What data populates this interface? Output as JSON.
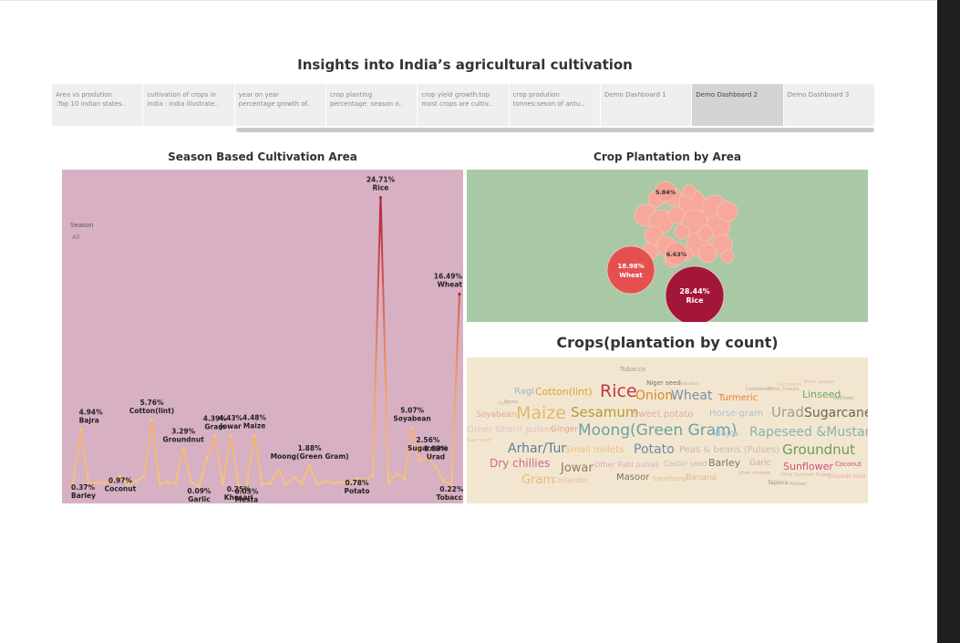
{
  "dashboard": {
    "title": "Insights into India’s agricultural cultivation"
  },
  "tabs": [
    {
      "line1": "Area vs prodution",
      "line2": ":Top 10 indian states.."
    },
    {
      "line1": "cuitivation of crops in",
      "line2": "india : india illustrate.."
    },
    {
      "line1": "year on year",
      "line2": "percentage growth of.."
    },
    {
      "line1": "crop planting",
      "line2": "percentage: season o.."
    },
    {
      "line1": "crop yield growth:top",
      "line2": "most crops are cultiv.."
    },
    {
      "line1": "crop prodution",
      "line2": "tonnes:seson of antu.."
    },
    {
      "line1": "Demo Dashboard 1",
      "line2": ""
    },
    {
      "line1": "Demo Dashboard 2",
      "line2": ""
    },
    {
      "line1": "Demo Dashboard 3",
      "line2": ""
    }
  ],
  "active_tab": 7,
  "season_panel": {
    "title": "Season Based Cultivation Area",
    "filter_label": "Season",
    "filter_value": "All"
  },
  "bubble_panel": {
    "title": "Crop Plantation by Area"
  },
  "cloud_panel": {
    "title": "Crops(plantation by count)"
  },
  "colors": {
    "season_bg": "#d8b0c4",
    "bubble_bg": "#a9c9a6",
    "cloud_bg": "#f3e6d0",
    "line_low": "#f5c57a",
    "line_high": "#b22137"
  },
  "chart_data": [
    {
      "type": "line",
      "title": "Season Based Cultivation Area",
      "ylim": [
        0,
        26
      ],
      "points": [
        0.37,
        4.94,
        0.3,
        0.5,
        0.4,
        0.6,
        0.97,
        0.3,
        0.6,
        1.0,
        5.76,
        0.3,
        0.5,
        0.4,
        3.29,
        0.5,
        0.09,
        2.6,
        4.39,
        0.3,
        4.43,
        0.25,
        0.05,
        4.48,
        0.3,
        0.4,
        1.5,
        0.3,
        0.9,
        0.4,
        1.88,
        0.3,
        0.6,
        0.4,
        0.5,
        0.4,
        0.78,
        0.6,
        1.0,
        24.71,
        0.4,
        1.2,
        0.8,
        5.07,
        2.3,
        2.56,
        1.83,
        0.6,
        0.22,
        16.49
      ],
      "labels": [
        {
          "i": 0,
          "text": "0.37%",
          "name": "Barley"
        },
        {
          "i": 1,
          "text": "4.94%",
          "name": "Bajra"
        },
        {
          "i": 6,
          "text": "0.97%",
          "name": "Coconut"
        },
        {
          "i": 10,
          "text": "5.76%",
          "name": "Cotton(lint)"
        },
        {
          "i": 14,
          "text": "3.29%",
          "name": "Groundnut"
        },
        {
          "i": 16,
          "text": "0.09%",
          "name": "Garlic"
        },
        {
          "i": 18,
          "text": "4.39%",
          "name": "Gram"
        },
        {
          "i": 20,
          "text": "4.43%",
          "name": "Jowar"
        },
        {
          "i": 21,
          "text": "0.25%",
          "name": "Khesari"
        },
        {
          "i": 22,
          "text": "0.05%",
          "name": "Mesta"
        },
        {
          "i": 23,
          "text": "4.48%",
          "name": "Maize"
        },
        {
          "i": 30,
          "text": "1.88%",
          "name": "Moong(Green Gram)"
        },
        {
          "i": 36,
          "text": "0.78%",
          "name": "Potato"
        },
        {
          "i": 39,
          "text": "24.71%",
          "name": "Rice"
        },
        {
          "i": 43,
          "text": "5.07%",
          "name": "Soyabean"
        },
        {
          "i": 45,
          "text": "2.56%",
          "name": "Sugarcane"
        },
        {
          "i": 46,
          "text": "1.83%",
          "name": "Urad"
        },
        {
          "i": 48,
          "text": "0.22%",
          "name": "Tobacco"
        },
        {
          "i": 49,
          "text": "16.49%",
          "name": "Wheat"
        }
      ]
    },
    {
      "type": "bubble",
      "title": "Crop Plantation by Area",
      "labeled": [
        {
          "name": "Rice",
          "value": "28.44%",
          "color": "#a4153a"
        },
        {
          "name": "Wheat",
          "value": "18.98%",
          "color": "#e5504f"
        },
        {
          "name": "",
          "value": "6.63%",
          "color": "#f6a193"
        },
        {
          "name": "",
          "value": "5.84%",
          "color": "#f6a193"
        }
      ]
    },
    {
      "type": "wordcloud",
      "title": "Crops(plantation by count)",
      "words": [
        {
          "text": "Tobacco",
          "color": "#9f9a92"
        },
        {
          "text": "Niger seed",
          "color": "#7b6f62"
        },
        {
          "text": "Ragi",
          "color": "#9ab6cf"
        },
        {
          "text": "Cotton(lint)",
          "color": "#e3a02c"
        },
        {
          "text": "Rice",
          "color": "#c33348"
        },
        {
          "text": "Onion",
          "color": "#d5872f"
        },
        {
          "text": "Wheat",
          "color": "#7c8fa4"
        },
        {
          "text": "Turmeric",
          "color": "#e37f30"
        },
        {
          "text": "Linseed",
          "color": "#6aa85a"
        },
        {
          "text": "Soyabean",
          "color": "#e0a88e"
        },
        {
          "text": "Maize",
          "color": "#e0ba68"
        },
        {
          "text": "Sesamum",
          "color": "#b39a32"
        },
        {
          "text": "Sweet potato",
          "color": "#e6a7a7"
        },
        {
          "text": "Horse-gram",
          "color": "#a9c3d8"
        },
        {
          "text": "Urad",
          "color": "#a39b92"
        },
        {
          "text": "Sugarcane",
          "color": "#6d645a"
        },
        {
          "text": "Other Kharif pulses",
          "color": "#e3c3c3"
        },
        {
          "text": "Ginger",
          "color": "#e8a290"
        },
        {
          "text": "Moong(Green Gram)",
          "color": "#6aa3a0"
        },
        {
          "text": "Bajra",
          "color": "#9cc1da"
        },
        {
          "text": "Rapeseed &Mustard",
          "color": "#87b3b0"
        },
        {
          "text": "Arhar/Tur",
          "color": "#5c7d9a"
        },
        {
          "text": "Small millets",
          "color": "#e8c27d"
        },
        {
          "text": "Potato",
          "color": "#6d8aa8"
        },
        {
          "text": "Peas & beans (Pulses)",
          "color": "#cbb8b4"
        },
        {
          "text": "Groundnut",
          "color": "#6c9e56"
        },
        {
          "text": "Dry chillies",
          "color": "#c86b8a"
        },
        {
          "text": "Jowar",
          "color": "#8f7b66"
        },
        {
          "text": "Other Rabi pulses",
          "color": "#d9a9c4"
        },
        {
          "text": "Castor seed",
          "color": "#c9b7a8"
        },
        {
          "text": "Barley",
          "color": "#7d776e"
        },
        {
          "text": "Garic",
          "color": "#c7a8b8"
        },
        {
          "text": "Sunflower",
          "color": "#d04f79"
        },
        {
          "text": "Coconut",
          "color": "#c65074"
        },
        {
          "text": "Gram",
          "color": "#e8bb78"
        },
        {
          "text": "Coriander",
          "color": "#e8bb9b"
        },
        {
          "text": "Masoor",
          "color": "#7a7068"
        },
        {
          "text": "Sannhamp",
          "color": "#e0c07f"
        },
        {
          "text": "Banana",
          "color": "#e7b58f"
        },
        {
          "text": "Tapioca",
          "color": "#9c8e82"
        },
        {
          "text": "Khesari",
          "color": "#b99fb0"
        },
        {
          "text": "Arecanut",
          "color": "#c3a898"
        },
        {
          "text": "Moth",
          "color": "#d2c4a6"
        },
        {
          "text": "Mesta",
          "color": "#b3a8a0"
        },
        {
          "text": "Guar seed",
          "color": "#dcc49c"
        },
        {
          "text": "Safflower",
          "color": "#9db58c"
        },
        {
          "text": "Cashewnut",
          "color": "#b5a49a"
        },
        {
          "text": "Other Cereals",
          "color": "#bfae9e"
        },
        {
          "text": "Cardamom",
          "color": "#e3c597"
        },
        {
          "text": "Black pepper",
          "color": "#d8b8b0"
        },
        {
          "text": "other oilseeds",
          "color": "#c8b3a6"
        },
        {
          "text": "Other Summer Pulses",
          "color": "#c7b3b8"
        },
        {
          "text": "Oilseeds total",
          "color": "#e8a8a8"
        }
      ]
    }
  ]
}
